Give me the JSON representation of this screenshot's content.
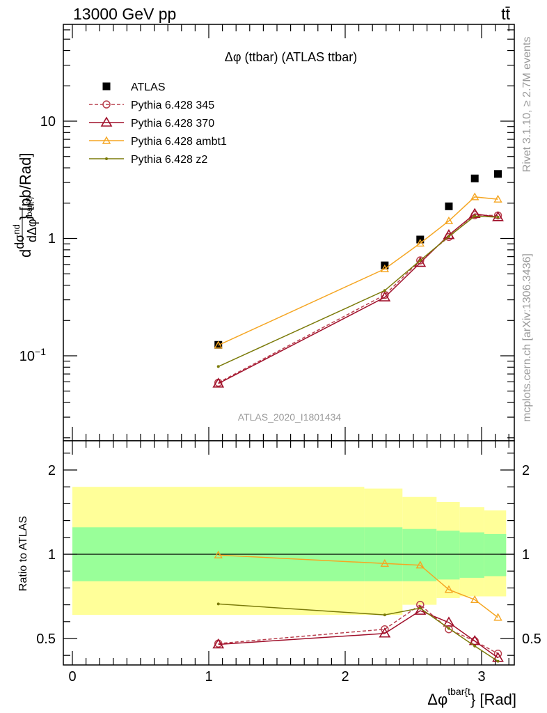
{
  "header": {
    "energy": "13000 GeV pp",
    "process": "tt̄"
  },
  "side": {
    "rivet": "Rivet 3.1.10, ≥ 2.7M events",
    "source": "mcplots.cern.ch [arXiv:1306.3436]"
  },
  "chart_data": {
    "type": "line",
    "title": "Δφ (ttbar) (ATLAS ttbar)",
    "watermark": "ATLAS_2020_I1801434",
    "xlabel": "Δφ^{tbar{t}} [Rad]",
    "ylabel_top": "d dσ^{nd} / dΔφ^{tbar{t}} [pb/Rad]",
    "ylabel_bottom": "Ratio to ATLAS",
    "xlim": [
      -0.07,
      3.22
    ],
    "top_panel": {
      "yscale": "log",
      "ylim": [
        0.022,
        70
      ],
      "ytick_labels": [
        "10",
        "1",
        "10^−1"
      ]
    },
    "ratio_panel": {
      "ylim": [
        0.35,
        2.35
      ],
      "ytick_labels": [
        "2",
        "1",
        "0.5"
      ],
      "xtick_labels": [
        "0",
        "1",
        "2",
        "3"
      ]
    },
    "x": [
      1.07,
      2.29,
      2.55,
      2.76,
      2.95,
      3.12
    ],
    "data_x": [
      1.07,
      2.29,
      2.55,
      2.76,
      2.95,
      3.12
    ],
    "bins": [
      [
        0,
        2.14
      ],
      [
        2.14,
        2.42
      ],
      [
        2.42,
        2.67
      ],
      [
        2.67,
        2.84
      ],
      [
        2.84,
        3.02
      ],
      [
        3.02,
        3.18
      ]
    ],
    "band_inner": [
      [
        0.84,
        1.16
      ],
      [
        0.84,
        1.16
      ],
      [
        0.84,
        1.15
      ],
      [
        0.85,
        1.14
      ],
      [
        0.86,
        1.13
      ],
      [
        0.87,
        1.12
      ]
    ],
    "band_outer": [
      [
        0.64,
        1.4
      ],
      [
        0.64,
        1.39
      ],
      [
        0.7,
        1.34
      ],
      [
        0.74,
        1.31
      ],
      [
        0.75,
        1.28
      ],
      [
        0.75,
        1.26
      ]
    ],
    "series": [
      {
        "name": "ATLAS",
        "values": [
          0.124,
          0.59,
          0.98,
          1.88,
          3.25,
          3.55
        ],
        "color": "#000000",
        "marker": "square"
      },
      {
        "name": "Pythia 6.428 345",
        "values": [
          0.059,
          0.33,
          0.65,
          1.03,
          1.58,
          1.57
        ],
        "ratio": [
          0.47,
          0.555,
          0.7,
          0.555,
          0.485,
          0.41
        ],
        "color": "#b9404e",
        "marker": "circle",
        "dashed": true
      },
      {
        "name": "Pythia 6.428 370",
        "values": [
          0.058,
          0.315,
          0.62,
          1.07,
          1.62,
          1.52
        ],
        "ratio": [
          0.465,
          0.53,
          0.665,
          0.595,
          0.485,
          0.385
        ],
        "color": "#a0102b",
        "marker": "triangle"
      },
      {
        "name": "Pythia 6.428 ambt1",
        "values": [
          0.123,
          0.55,
          0.91,
          1.41,
          2.26,
          2.16
        ],
        "ratio": [
          0.995,
          0.945,
          0.935,
          0.79,
          0.73,
          0.625
        ],
        "color": "#f5a623",
        "marker": "triangle-small"
      },
      {
        "name": "Pythia 6.428 z2",
        "values": [
          0.081,
          0.36,
          0.65,
          1.04,
          1.55,
          1.52
        ],
        "ratio": [
          0.705,
          0.64,
          0.68,
          0.56,
          0.455,
          0.365
        ],
        "color": "#7b7b0a",
        "marker": "dot"
      }
    ],
    "legend_position": "top-left"
  }
}
